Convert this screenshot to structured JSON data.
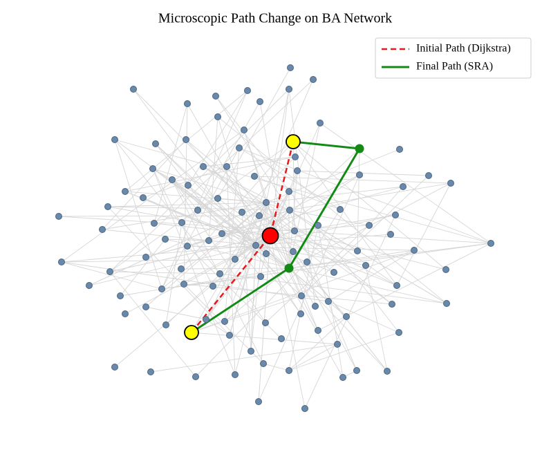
{
  "title": "Microscopic Path Change on BA Network",
  "legend": {
    "items": [
      {
        "label": "Initial Path (Dijkstra)",
        "color": "#e41a1c"
      },
      {
        "label": "Final Path (SRA)",
        "color": "#138a13"
      }
    ]
  }
}
